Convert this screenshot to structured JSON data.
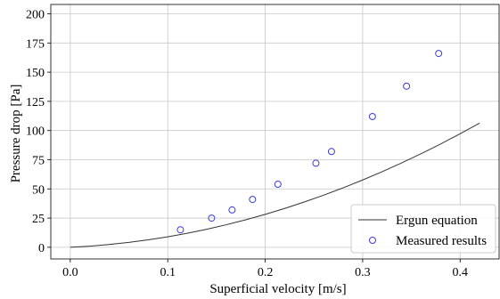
{
  "chart_data": {
    "type": "scatter",
    "title": "",
    "xlabel": "Superficial velocity [m/s]",
    "ylabel": "Pressure drop [Pa]",
    "xlim": [
      -0.02,
      0.44
    ],
    "ylim": [
      -10,
      208
    ],
    "xticks": [
      0.0,
      0.1,
      0.2,
      0.3,
      0.4
    ],
    "xtick_labels": [
      "0.0",
      "0.1",
      "0.2",
      "0.3",
      "0.4"
    ],
    "yticks": [
      0,
      25,
      50,
      75,
      100,
      125,
      150,
      175,
      200
    ],
    "ytick_labels": [
      "0",
      "25",
      "50",
      "75",
      "100",
      "125",
      "150",
      "175",
      "200"
    ],
    "grid": true,
    "legend_position": "bottom-right",
    "series": [
      {
        "name": "Ergun equation",
        "kind": "line",
        "color": "#333333",
        "x": [
          0.0,
          0.02,
          0.04,
          0.06,
          0.08,
          0.1,
          0.12,
          0.14,
          0.16,
          0.18,
          0.2,
          0.22,
          0.24,
          0.26,
          0.28,
          0.3,
          0.32,
          0.34,
          0.36,
          0.38,
          0.4,
          0.42
        ],
        "y": [
          0.0,
          0.98,
          2.37,
          4.17,
          6.38,
          9.0,
          12.03,
          15.46,
          19.31,
          23.56,
          28.22,
          33.29,
          38.76,
          44.64,
          50.93,
          57.63,
          64.74,
          72.25,
          80.17,
          88.5,
          97.24,
          106.38
        ]
      },
      {
        "name": "Measured results",
        "kind": "scatter",
        "color": "#3b3bd6",
        "x": [
          0.113,
          0.145,
          0.166,
          0.187,
          0.213,
          0.252,
          0.268,
          0.31,
          0.345,
          0.378
        ],
        "y": [
          15,
          25,
          32,
          41,
          54,
          72,
          82,
          112,
          138,
          166
        ]
      }
    ]
  }
}
